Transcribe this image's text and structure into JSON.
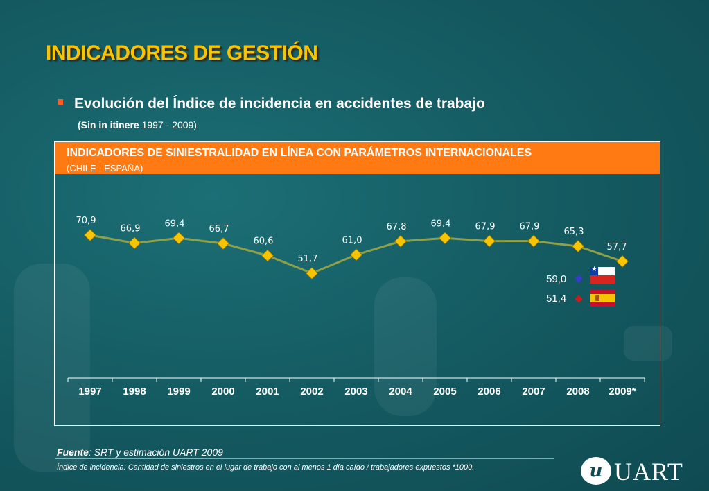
{
  "page": {
    "title": "INDICADORES DE GESTIÓN",
    "subtitle": "Evolución del Índice de incidencia en accidentes de trabajo",
    "subnote_bold": "(Sin in itinere",
    "subnote_rest": " 1997 - 2009)"
  },
  "chart_header": {
    "line1": "INDICADORES DE SINIESTRALIDAD EN LÍNEA CON PARÁMETROS INTERNACIONALES",
    "line2": "(CHILE - ESPAÑA)"
  },
  "chart_data": {
    "type": "line",
    "categories": [
      "1997",
      "1998",
      "1999",
      "2000",
      "2001",
      "2002",
      "2003",
      "2004",
      "2005",
      "2006",
      "2007",
      "2008",
      "2009*"
    ],
    "values": [
      70.9,
      66.9,
      69.4,
      66.7,
      60.6,
      51.7,
      61.0,
      67.8,
      69.4,
      67.9,
      67.9,
      65.3,
      57.7
    ],
    "value_labels": [
      "70,9",
      "66,9",
      "69,4",
      "66,7",
      "60,6",
      "51,7",
      "61,0",
      "67,8",
      "69,4",
      "67,9",
      "67,9",
      "65,3",
      "57,7"
    ],
    "line_color": "#8fa04a",
    "marker_color": "#f6c400",
    "comparisons": [
      {
        "label": "59,0",
        "value": 59.0,
        "marker_color": "#3a3ad0",
        "flag": "chile-flag"
      },
      {
        "label": "51,4",
        "value": 51.4,
        "marker_color": "#d01a1a",
        "flag": "spain-flag"
      }
    ]
  },
  "footer": {
    "source_bold": "Fuente",
    "source_rest": ": SRT y estimación UART 2009",
    "footnote": "Índice de incidencia: Cantidad de siniestros en el lugar de trabajo con al menos 1 día caído / trabajadores expuestos *1000.",
    "logo_text": "UART",
    "logo_mark": "u"
  },
  "colors": {
    "title": "#f6c400",
    "header_bg": "#ff7a12",
    "bullet": "#ff5a1f"
  }
}
